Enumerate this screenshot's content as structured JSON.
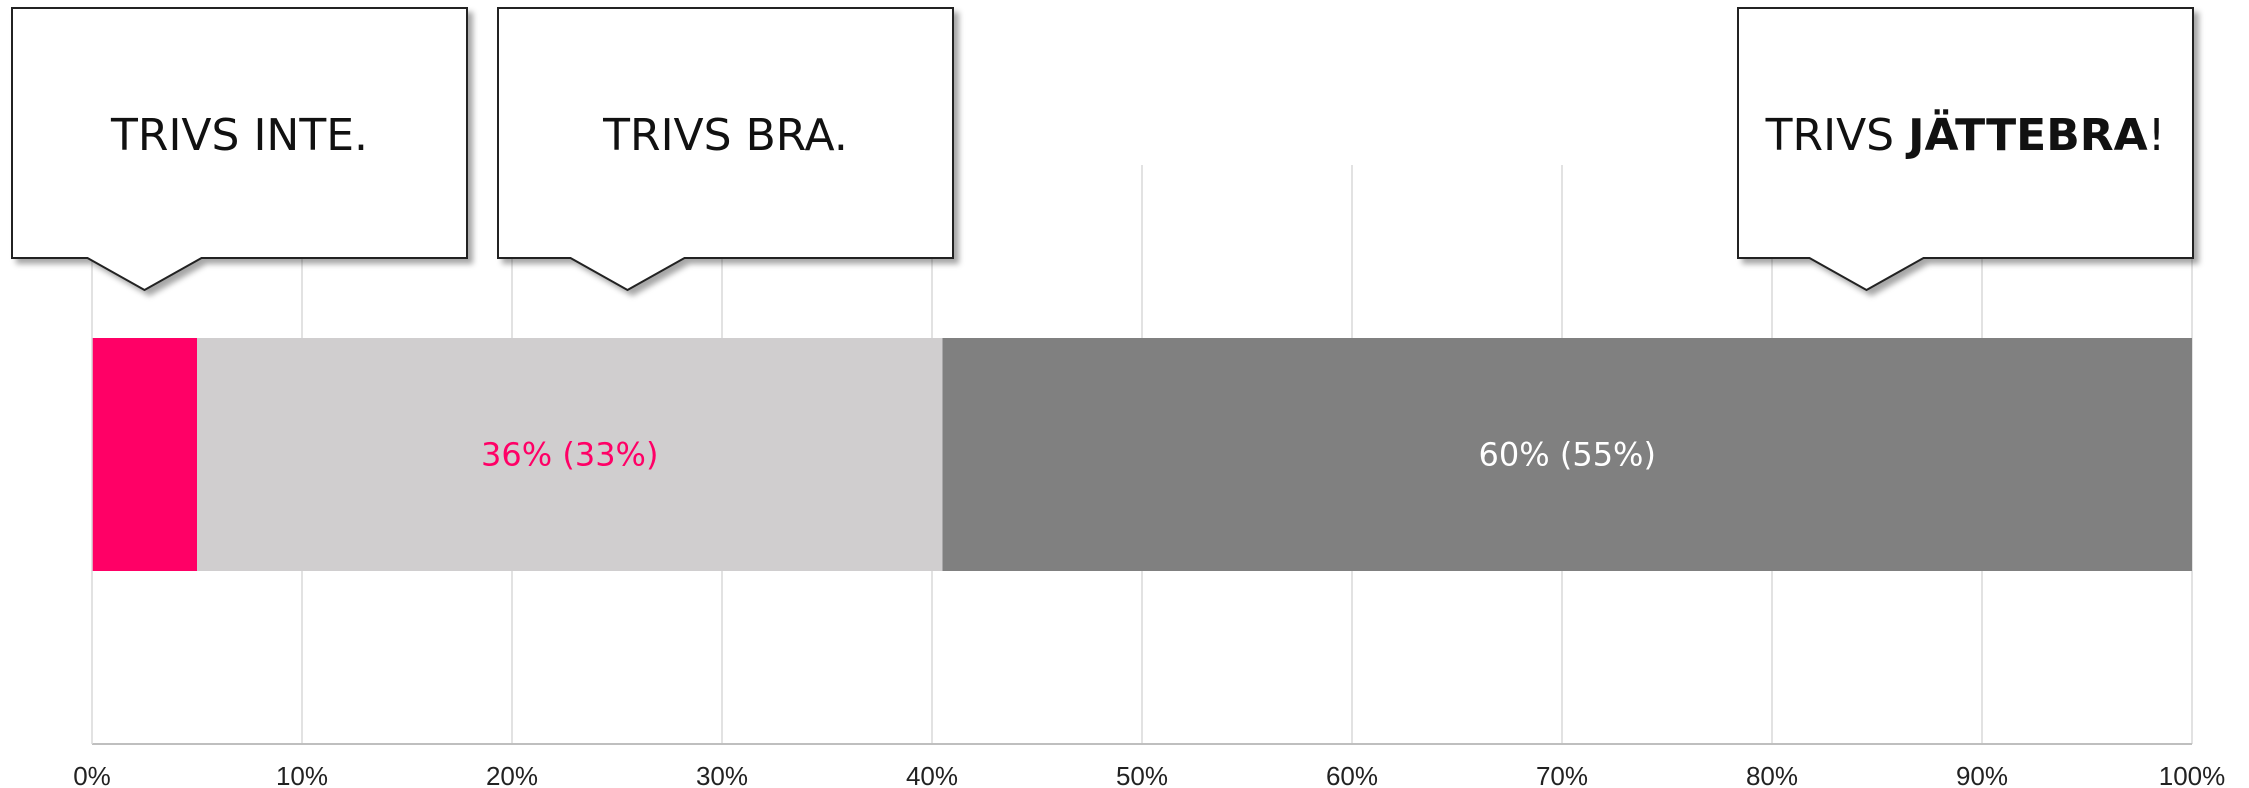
{
  "chart_data": {
    "type": "bar",
    "orientation": "horizontal-stacked",
    "xlim": [
      0,
      100
    ],
    "x_ticks": [
      "0%",
      "10%",
      "20%",
      "30%",
      "40%",
      "50%",
      "60%",
      "70%",
      "80%",
      "90%",
      "100%"
    ],
    "grid": true,
    "legend": "none",
    "series": [
      {
        "value": 5,
        "label": "",
        "color": "#ff0066",
        "label_color": "#ff0066"
      },
      {
        "value": 35.5,
        "label": "36% (33%)",
        "color": "#d0cecf",
        "label_color": "#ff0066"
      },
      {
        "value": 59.5,
        "label": "60% (55%)",
        "color": "#808080",
        "label_color": "#ffffff"
      }
    ],
    "annotations": [
      {
        "parts": [
          {
            "text": "TRIVS INTE.",
            "bold": false
          }
        ],
        "points_to_percent": 2.5
      },
      {
        "parts": [
          {
            "text": "TRIVS BRA.",
            "bold": false
          }
        ],
        "points_to_percent": 25.5
      },
      {
        "parts": [
          {
            "text": "TRIVS ",
            "bold": false
          },
          {
            "text": "JÄTTEBRA",
            "bold": true
          },
          {
            "text": "!",
            "bold": false
          }
        ],
        "points_to_percent": 84.5
      }
    ]
  }
}
